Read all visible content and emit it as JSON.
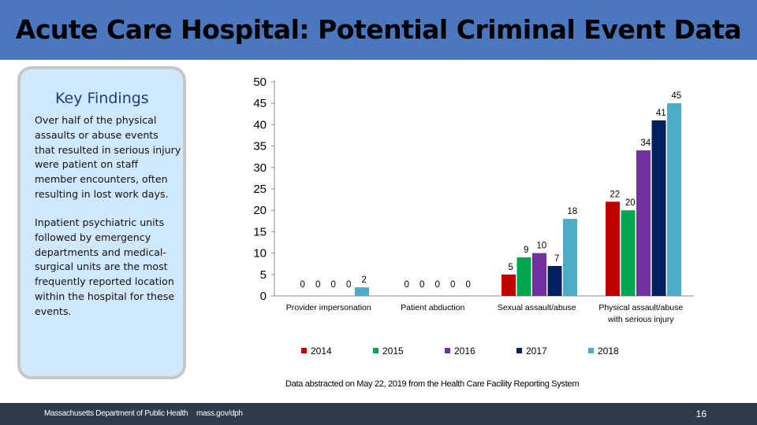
{
  "header": {
    "title": "Acute Care Hospital: Potential Criminal Event Data"
  },
  "key_findings": {
    "title": "Key Findings",
    "paragraphs": [
      "Over half of the physical assaults or abuse events that resulted in serious injury were patient on staff member encounters, often resulting in lost work days.",
      "Inpatient psychiatric units followed by emergency departments and medical-surgical units are the most frequently reported location within the hospital for these events."
    ]
  },
  "chart_data": {
    "type": "bar",
    "categories": [
      [
        "Provider impersonation"
      ],
      [
        "Patient abduction"
      ],
      [
        "Sexual assault/abuse"
      ],
      [
        "Physical assault/abuse",
        "with serious injury"
      ]
    ],
    "series": [
      {
        "name": "2014",
        "color": "#c00000",
        "values": [
          0,
          0,
          5,
          22
        ]
      },
      {
        "name": "2015",
        "color": "#00a651",
        "values": [
          0,
          0,
          9,
          20
        ]
      },
      {
        "name": "2016",
        "color": "#7030a0",
        "values": [
          0,
          0,
          10,
          34
        ]
      },
      {
        "name": "2017",
        "color": "#002060",
        "values": [
          0,
          0,
          7,
          41
        ]
      },
      {
        "name": "2018",
        "color": "#4bacc6",
        "values": [
          2,
          0,
          18,
          45
        ]
      }
    ],
    "yticks": [
      "0",
      "5",
      "10",
      "15",
      "20",
      "25",
      "30",
      "35",
      "40",
      "45",
      "50"
    ],
    "ylim": [
      0,
      50
    ],
    "grid": false,
    "legend_position": "bottom"
  },
  "note": "Data abstracted on May 22, 2019 from the Health Care Facility Reporting System",
  "footer": {
    "department": "Massachusetts Department of Public Health",
    "website": "mass.gov/dph",
    "page": "16"
  }
}
